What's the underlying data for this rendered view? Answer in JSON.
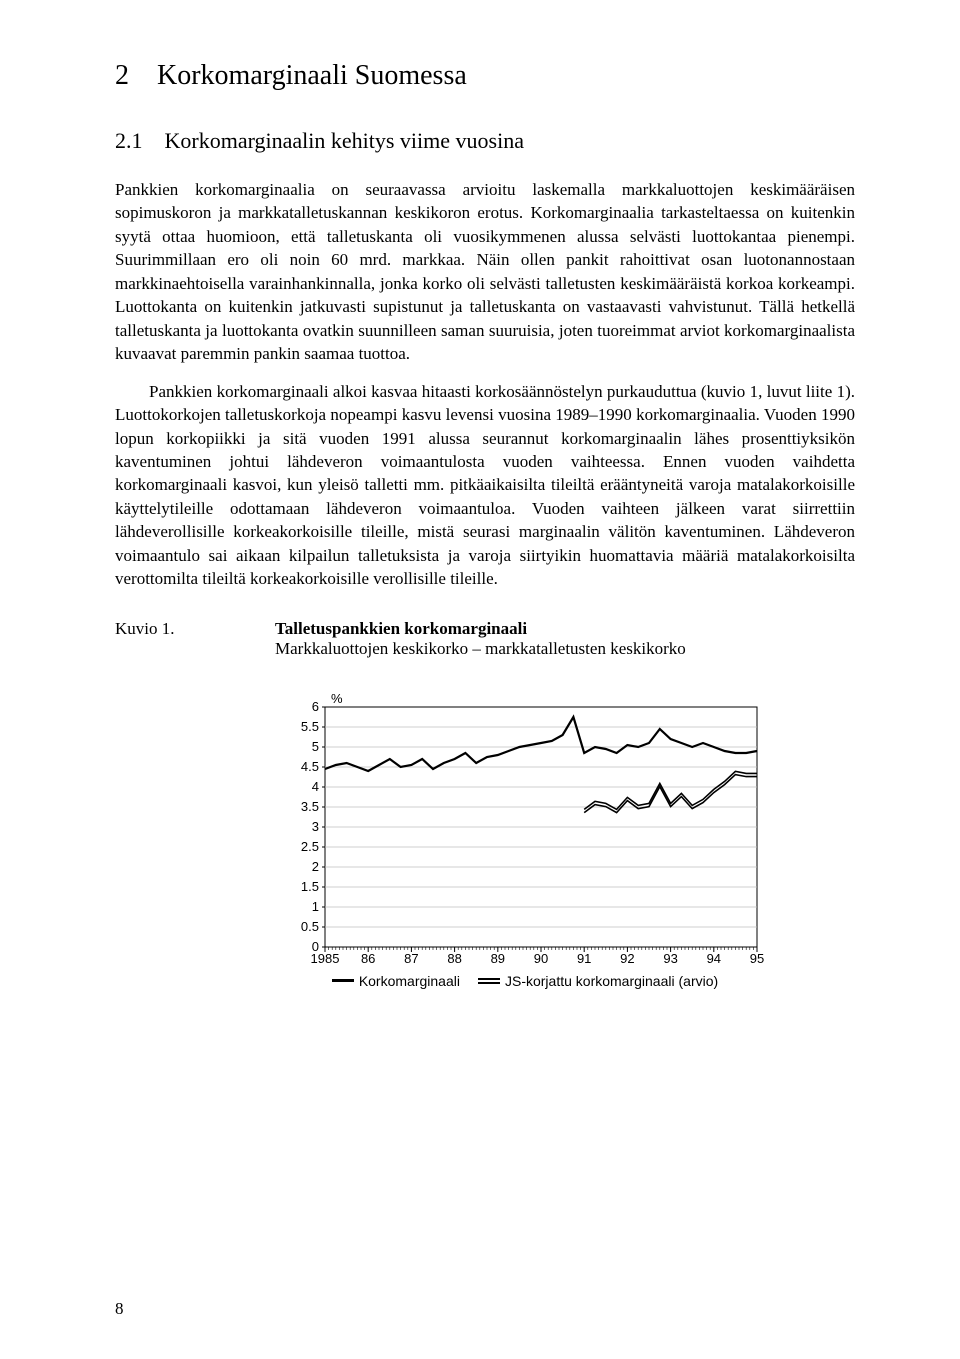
{
  "chapter": {
    "number": "2",
    "title": "Korkomarginaali Suomessa"
  },
  "section": {
    "number": "2.1",
    "title": "Korkomarginaalin kehitys viime vuosina"
  },
  "paragraphs": {
    "p1": "Pankkien korkomarginaalia on seuraavassa arvioitu laskemalla markkaluottojen keskimääräisen sopimuskoron ja markkatalletuskannan keskikoron erotus. Korkomarginaalia tarkasteltaessa on kuitenkin syytä ottaa huomioon, että talletuskanta oli vuosikymmenen alussa selvästi luottokantaa pienempi. Suurimmillaan ero oli noin 60 mrd. markkaa. Näin ollen pankit   rahoittivat osan luotonannostaan markkinaehtoisella varainhankinnalla, jonka korko oli selvästi talletusten keskimääräistä korkoa korkeampi. Luottokanta on kuitenkin jatkuvasti supistunut ja talletuskanta on vastaavasti vahvistunut. Tällä hetkellä talletuskanta ja luottokanta ovatkin suunnilleen saman suuruisia, joten tuoreimmat arviot korkomarginaalista kuvaavat paremmin pankin saamaa tuottoa.",
    "p2": "Pankkien korkomarginaali alkoi kasvaa hitaasti korkosäännöstelyn purkauduttua (kuvio 1, luvut liite 1). Luottokorkojen talletuskorkoja nopeampi kasvu levensi vuosina 1989–1990 korkomarginaalia. Vuoden 1990 lopun korkopiikki ja sitä vuoden 1991 alussa seurannut korkomarginaalin lähes prosenttiyksikön kaventuminen johtui lähdeveron voimaantulosta vuoden vaihteessa. Ennen vuoden vaihdetta korkomarginaali kasvoi, kun yleisö talletti mm. pitkäaikaisilta tileiltä erääntyneitä varoja matalakorkoisille käyttelytileille odottamaan lähdeveron voimaantuloa. Vuoden vaihteen jälkeen varat siirrettiin lähdeverollisille korkeakorkoisille tileille, mistä seurasi marginaalin välitön kaventuminen. Lähdeveron voimaantulo sai aikaan kilpailun talletuksista ja varoja siirtyikin huomattavia määriä matalakorkoisilta verottomilta tileiltä korkeakorkoisille verollisille tileille."
  },
  "figure": {
    "label": "Kuvio 1.",
    "title": "Talletuspankkien korkomarginaali",
    "subtitle": "Markkaluottojen keskikorko – markkatalletusten keskikorko"
  },
  "chart": {
    "type": "line",
    "y_unit": "%",
    "ylim": [
      0,
      6
    ],
    "ytick_step": 0.5,
    "yticks": [
      "0",
      "0.5",
      "1",
      "1.5",
      "2",
      "2.5",
      "3",
      "3.5",
      "4",
      "4.5",
      "5",
      "5.5",
      "6"
    ],
    "xticks": [
      "1985",
      "86",
      "87",
      "88",
      "89",
      "90",
      "91",
      "92",
      "93",
      "94",
      "95"
    ],
    "background_color": "#ffffff",
    "grid_color": "#bfbfbf",
    "axis_color": "#000000",
    "font_family": "Arial",
    "axis_fontsize": 13,
    "series": [
      {
        "name": "Korkomarginaali",
        "color": "#000000",
        "stroke_style": "solid",
        "stroke_width": 2.2,
        "x": [
          1985.0,
          1985.25,
          1985.5,
          1985.75,
          1986.0,
          1986.25,
          1986.5,
          1986.75,
          1987.0,
          1987.25,
          1987.5,
          1987.75,
          1988.0,
          1988.25,
          1988.5,
          1988.75,
          1989.0,
          1989.25,
          1989.5,
          1989.75,
          1990.0,
          1990.25,
          1990.5,
          1990.75,
          1991.0,
          1991.25,
          1991.5,
          1991.75,
          1992.0,
          1992.25,
          1992.5,
          1992.75,
          1993.0,
          1993.25,
          1993.5,
          1993.75,
          1994.0,
          1994.25,
          1994.5,
          1994.75,
          1995.0
        ],
        "y": [
          4.45,
          4.55,
          4.6,
          4.5,
          4.4,
          4.55,
          4.7,
          4.5,
          4.55,
          4.7,
          4.45,
          4.6,
          4.7,
          4.85,
          4.6,
          4.75,
          4.8,
          4.9,
          5.0,
          5.05,
          5.1,
          5.15,
          5.3,
          5.75,
          4.85,
          5.0,
          4.95,
          4.85,
          5.05,
          5.0,
          5.1,
          5.45,
          5.2,
          5.1,
          5.0,
          5.1,
          5.0,
          4.9,
          4.85,
          4.85,
          4.9
        ]
      },
      {
        "name": "JS-korjattu korkomarginaali (arvio)",
        "color": "#000000",
        "stroke_style": "double",
        "stroke_width": 1.6,
        "x": [
          1991.0,
          1991.25,
          1991.5,
          1991.75,
          1992.0,
          1992.25,
          1992.5,
          1992.75,
          1993.0,
          1993.25,
          1993.5,
          1993.75,
          1994.0,
          1994.25,
          1994.5,
          1994.75,
          1995.0
        ],
        "y": [
          3.4,
          3.6,
          3.55,
          3.4,
          3.7,
          3.5,
          3.55,
          4.05,
          3.55,
          3.8,
          3.5,
          3.65,
          3.9,
          4.1,
          4.35,
          4.3,
          4.3
        ]
      }
    ],
    "legend": {
      "items": [
        {
          "label": "Korkomarginaali",
          "marker": "solid"
        },
        {
          "label": "JS-korjattu korkomarginaali (arvio)",
          "marker": "double"
        }
      ]
    }
  },
  "page_number": "8"
}
